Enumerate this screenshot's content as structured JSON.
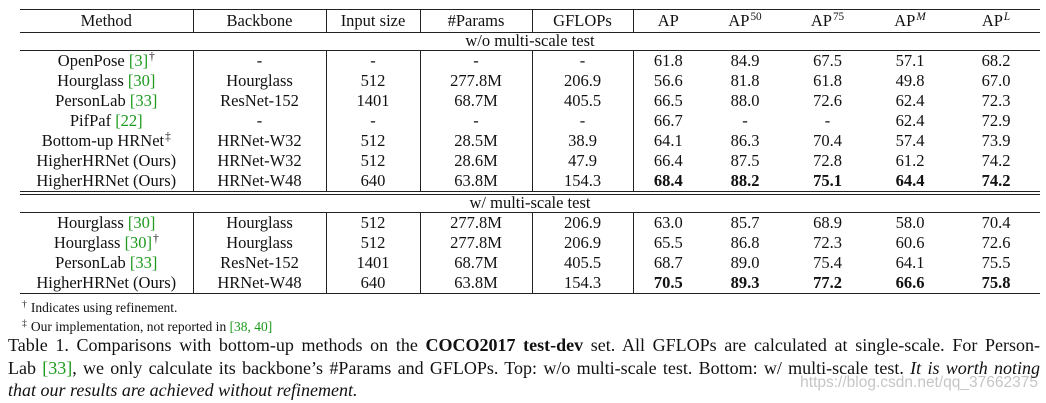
{
  "table": {
    "headers": [
      {
        "label": "Method"
      },
      {
        "label": "Backbone"
      },
      {
        "label": "Input size"
      },
      {
        "label": "#Params"
      },
      {
        "label": "GFLOPs"
      },
      {
        "label": "AP"
      },
      {
        "label": "AP",
        "sup": "50"
      },
      {
        "label": "AP",
        "sup": "75"
      },
      {
        "label": "AP",
        "sup": "M"
      },
      {
        "label": "AP",
        "sup": "L"
      }
    ],
    "sections": [
      {
        "label": "w/o multi-scale test",
        "rows": [
          {
            "method": "OpenPose",
            "cite": "[3]",
            "mark": "†",
            "backbone": "-",
            "input_size": "-",
            "params": "-",
            "gflops": "-",
            "ap": [
              "61.8",
              "84.9",
              "67.5",
              "57.1",
              "68.2"
            ],
            "bold_ap": false
          },
          {
            "method": "Hourglass",
            "cite": "[30]",
            "backbone": "Hourglass",
            "input_size": "512",
            "params": "277.8M",
            "gflops": "206.9",
            "ap": [
              "56.6",
              "81.8",
              "61.8",
              "49.8",
              "67.0"
            ],
            "bold_ap": false
          },
          {
            "method": "PersonLab",
            "cite": "[33]",
            "backbone": "ResNet-152",
            "input_size": "1401",
            "params": "68.7M",
            "gflops": "405.5",
            "ap": [
              "66.5",
              "88.0",
              "72.6",
              "62.4",
              "72.3"
            ],
            "bold_ap": false
          },
          {
            "method": "PifPaf",
            "cite": "[22]",
            "backbone": "-",
            "input_size": "-",
            "params": "-",
            "gflops": "-",
            "ap": [
              "66.7",
              "-",
              "-",
              "62.4",
              "72.9"
            ],
            "bold_ap": false
          },
          {
            "method": "Bottom-up HRNet",
            "mark": "‡",
            "backbone": "HRNet-W32",
            "input_size": "512",
            "params": "28.5M",
            "gflops": "38.9",
            "ap": [
              "64.1",
              "86.3",
              "70.4",
              "57.4",
              "73.9"
            ],
            "bold_ap": false
          },
          {
            "method": "HigherHRNet (Ours)",
            "backbone": "HRNet-W32",
            "input_size": "512",
            "params": "28.6M",
            "gflops": "47.9",
            "ap": [
              "66.4",
              "87.5",
              "72.8",
              "61.2",
              "74.2"
            ],
            "bold_ap": false
          },
          {
            "method": "HigherHRNet (Ours)",
            "backbone": "HRNet-W48",
            "input_size": "640",
            "params": "63.8M",
            "gflops": "154.3",
            "ap": [
              "68.4",
              "88.2",
              "75.1",
              "64.4",
              "74.2"
            ],
            "bold_ap": true
          }
        ]
      },
      {
        "label": "w/ multi-scale test",
        "rows": [
          {
            "method": "Hourglass",
            "cite": "[30]",
            "backbone": "Hourglass",
            "input_size": "512",
            "params": "277.8M",
            "gflops": "206.9",
            "ap": [
              "63.0",
              "85.7",
              "68.9",
              "58.0",
              "70.4"
            ],
            "bold_ap": false
          },
          {
            "method": "Hourglass",
            "cite": "[30]",
            "mark": "†",
            "backbone": "Hourglass",
            "input_size": "512",
            "params": "277.8M",
            "gflops": "206.9",
            "ap": [
              "65.5",
              "86.8",
              "72.3",
              "60.6",
              "72.6"
            ],
            "bold_ap": false
          },
          {
            "method": "PersonLab",
            "cite": "[33]",
            "backbone": "ResNet-152",
            "input_size": "1401",
            "params": "68.7M",
            "gflops": "405.5",
            "ap": [
              "68.7",
              "89.0",
              "75.4",
              "64.1",
              "75.5"
            ],
            "bold_ap": false
          },
          {
            "method": "HigherHRNet (Ours)",
            "backbone": "HRNet-W48",
            "input_size": "640",
            "params": "63.8M",
            "gflops": "154.3",
            "ap": [
              "70.5",
              "89.3",
              "77.2",
              "66.6",
              "75.8"
            ],
            "bold_ap": true
          }
        ]
      }
    ]
  },
  "footnotes": [
    {
      "mark": "†",
      "text": "Indicates using refinement."
    },
    {
      "mark": "‡",
      "text": "Our implementation, not reported in ",
      "cite": "[38, 40]"
    }
  ],
  "caption": {
    "line1": {
      "a": "Table 1. Comparisons with bottom-up methods on the ",
      "bold": "COCO2017 test-dev",
      "b": " set. All GFLOPs are calculated at single-scale. For Person-"
    },
    "line2": {
      "a": "Lab ",
      "cite": "[33]",
      "b": ", we only calculate its backbone’s #Params and GFLOPs. Top: w/o multi-scale test. Bottom: w/ multi-scale test. ",
      "italic": "It is worth noting"
    },
    "line3": {
      "italic": "that our results are achieved without refinement."
    }
  },
  "watermark": "https://blog.csdn.net/qq_37662375",
  "colors": {
    "citation": "#1d9a1d",
    "text": "#111111",
    "rule": "#222222"
  }
}
